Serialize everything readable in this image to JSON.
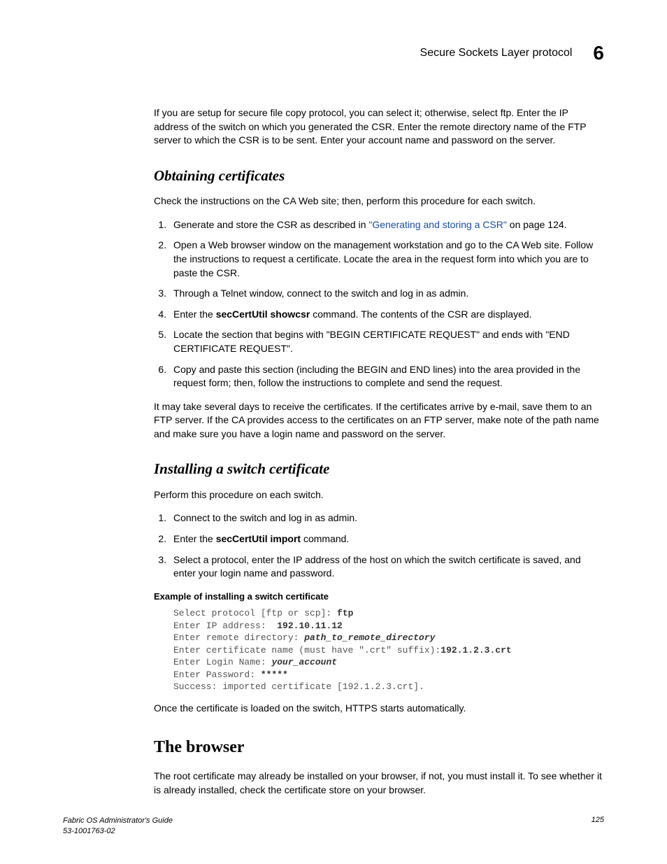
{
  "header": {
    "title": "Secure Sockets Layer protocol",
    "chapter": "6"
  },
  "intro_para": "If you are setup for secure file copy protocol, you can select it; otherwise, select ftp. Enter the IP address of the switch on which you generated the CSR. Enter the remote directory name of the FTP server to which the CSR is to be sent. Enter your account name and password on the server.",
  "section1": {
    "heading": "Obtaining certificates",
    "intro": "Check the instructions on the CA Web site; then, perform this procedure for each switch.",
    "step1_pre": "Generate and store the CSR as described in ",
    "step1_link": "\"Generating and storing a CSR\"",
    "step1_post": " on page 124.",
    "step2": "Open a Web browser window on the management workstation and go to the CA Web site. Follow the instructions to request a certificate. Locate the area in the request form into which you are to paste the CSR.",
    "step3": "Through a Telnet window, connect to the switch and log in as admin.",
    "step4_pre": "Enter the ",
    "step4_cmd": "secCertUtil showcsr",
    "step4_post": "  command. The contents of the CSR are displayed.",
    "step5": "Locate the section that begins with \"BEGIN CERTIFICATE REQUEST\" and ends with \"END CERTIFICATE REQUEST\".",
    "step6": "Copy and paste this section (including the BEGIN and END lines) into the area provided in the request form; then, follow the instructions to complete and send the request.",
    "outro": "It may take several days to receive the certificates. If the certificates arrive by e-mail, save them to an FTP server. If the CA provides access to the certificates on an FTP server, make note of the path name and make sure you have a login name and password on the server."
  },
  "section2": {
    "heading": "Installing a switch certificate",
    "intro": "Perform this procedure on each switch.",
    "step1": "Connect to the switch and log in as admin.",
    "step2_pre": "Enter the ",
    "step2_cmd": "secCertUtil import",
    "step2_post": "  command.",
    "step3": "Select a protocol, enter the IP address of the host on which the switch certificate is saved, and enter your login name and password.",
    "example_title": "Example  of installing a switch certificate",
    "code": {
      "l1a": "Select protocol [ftp or scp]: ",
      "l1b": "ftp",
      "l2a": "Enter IP address:  ",
      "l2b": "192.10.11.12",
      "l3a": "Enter remote directory: ",
      "l3b": "path_to_remote_directory",
      "l4a": "Enter certificate name (must have \".crt\" suffix):",
      "l4b": "192.1.2.3.crt",
      "l5a": "Enter Login Name: ",
      "l5b": "your_account",
      "l6a": "Enter Password: ",
      "l6b": "*****",
      "l7": "Success: imported certificate [192.1.2.3.crt]."
    },
    "outro": "Once the certificate is loaded on the switch, HTTPS starts automatically."
  },
  "section3": {
    "heading": "The browser",
    "para": "The root certificate may already be installed on your browser, if not, you must install it. To see whether it is already installed, check the certificate store on your browser."
  },
  "footer": {
    "line1": "Fabric OS Administrator's Guide",
    "line2": "53-1001763-02",
    "page": "125"
  }
}
